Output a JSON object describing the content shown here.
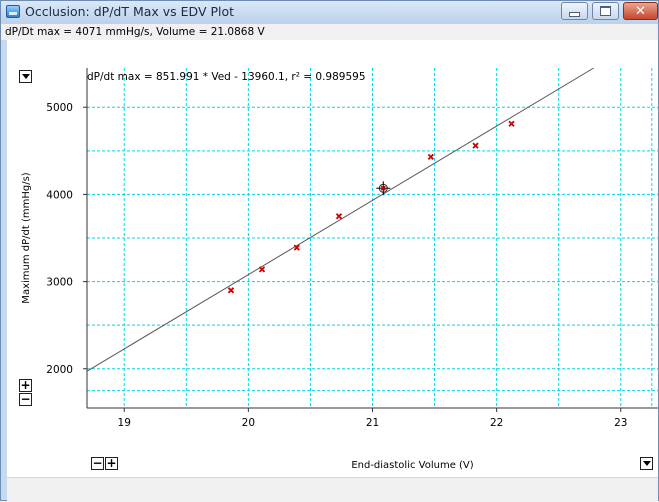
{
  "window": {
    "title": "Occlusion: dP/dT Max vs EDV Plot",
    "status": "dP/Dt max = 4071 mmHg/s, Volume = 21.0868 V",
    "controls": {
      "minimize_icon": "minimize-icon",
      "maximize_icon": "maximize-icon",
      "close_icon": "close-icon"
    }
  },
  "plot": {
    "zoom_in_label": "+",
    "zoom_out_label": "−",
    "equation": "dP/dt max = 851.991 * Ved - 13960.1, r² = 0.989595",
    "grid_color": "#00d8e8",
    "point_color": "#cc0000",
    "line_color": "#555555"
  },
  "chart_data": {
    "type": "scatter",
    "xlabel": "End-diastolic Volume (V)",
    "ylabel": "Maximum dP/dt (mmHg/s)",
    "xlim": [
      18.7,
      23.3
    ],
    "ylim": [
      1550,
      5450
    ],
    "x_ticks": [
      19,
      20,
      21,
      22,
      23
    ],
    "y_ticks": [
      2000,
      3000,
      4000,
      5000
    ],
    "grid": true,
    "points": [
      {
        "x": 19.86,
        "y": 2900
      },
      {
        "x": 20.11,
        "y": 3140
      },
      {
        "x": 20.39,
        "y": 3390
      },
      {
        "x": 20.73,
        "y": 3750
      },
      {
        "x": 21.47,
        "y": 4430
      },
      {
        "x": 21.83,
        "y": 4560
      },
      {
        "x": 22.12,
        "y": 4810
      }
    ],
    "cursor": {
      "x": 21.0868,
      "y": 4071
    },
    "fit": {
      "slope": 851.991,
      "intercept": -13960.1,
      "r2": 0.989595
    }
  }
}
